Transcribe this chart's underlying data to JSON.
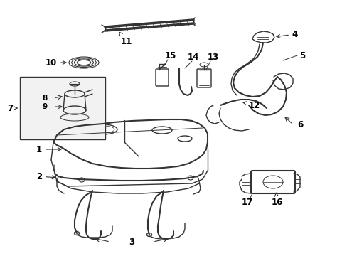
{
  "bg_color": "#ffffff",
  "line_color": "#333333",
  "label_color": "#000000",
  "label_fontsize": 8.5,
  "fig_width": 4.89,
  "fig_height": 3.6,
  "dpi": 100
}
